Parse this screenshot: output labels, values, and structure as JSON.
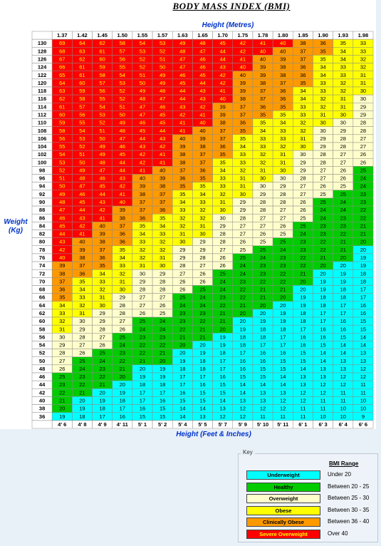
{
  "title": "BODY MASS INDEX (BMI)",
  "axis_top_label": "Height (Metres)",
  "axis_bottom_label": "Height (Feet & Inches)",
  "axis_left_label_line1": "Weight",
  "axis_left_label_line2": "(Kg)",
  "key": {
    "title": "Key",
    "header": "BMI Range",
    "items": [
      {
        "label": "Underweight",
        "range": "Under 20",
        "color": "#00ffff",
        "text_color": "#000000"
      },
      {
        "label": "Healthy",
        "range": "Between 20 - 25",
        "color": "#00cc00",
        "text_color": "#000000"
      },
      {
        "label": "Overweight",
        "range": "Between 25 - 30",
        "color": "#ffffcc",
        "text_color": "#000000"
      },
      {
        "label": "Obese",
        "range": "Between 30 - 35",
        "color": "#ffff00",
        "text_color": "#000000"
      },
      {
        "label": "Clinically Obese",
        "range": "Between 36 - 40",
        "color": "#ff9900",
        "text_color": "#000000"
      },
      {
        "label": "Severe Overweight",
        "range": "Over 40",
        "color": "#ff0000",
        "text_color": "#ffff00"
      }
    ]
  },
  "colors": {
    "underweight": "#00ffff",
    "healthy": "#00cc00",
    "overweight": "#ffffcc",
    "obese": "#ffff00",
    "clinically_obese": "#ff9900",
    "severe": "#ff0000",
    "severe_text": "#ffff00",
    "header_bg": "#ffffff",
    "axis_text": "#0033cc"
  },
  "chart_data": {
    "type": "heatmap",
    "title": "BODY MASS INDEX (BMI)",
    "xlabel": "Height (Metres)",
    "xlabel_bottom": "Height (Feet & Inches)",
    "ylabel": "Weight (Kg)",
    "heights_m": [
      "1.37",
      "1.42",
      "1.45",
      "1.50",
      "1.55",
      "1.57",
      "1.63",
      "1.65",
      "1.70",
      "1.75",
      "1.78",
      "1.80",
      "1.85",
      "1.90",
      "1.93",
      "1.98"
    ],
    "heights_ft": [
      "4' 6",
      "4' 8",
      "4' 9",
      "4' 11",
      "5' 1",
      "5' 2",
      "5' 4",
      "5' 5",
      "5' 7",
      "5' 9",
      "5' 10",
      "5' 11",
      "6' 1",
      "6' 3",
      "6' 4",
      "6' 6"
    ],
    "weights_kg": [
      130,
      128,
      126,
      124,
      122,
      120,
      118,
      116,
      114,
      112,
      110,
      108,
      106,
      104,
      102,
      100,
      98,
      96,
      94,
      92,
      90,
      88,
      86,
      84,
      82,
      80,
      78,
      76,
      74,
      72,
      70,
      68,
      66,
      64,
      62,
      60,
      58,
      56,
      54,
      52,
      50,
      48,
      46,
      44,
      42,
      40,
      38,
      36
    ]
  }
}
